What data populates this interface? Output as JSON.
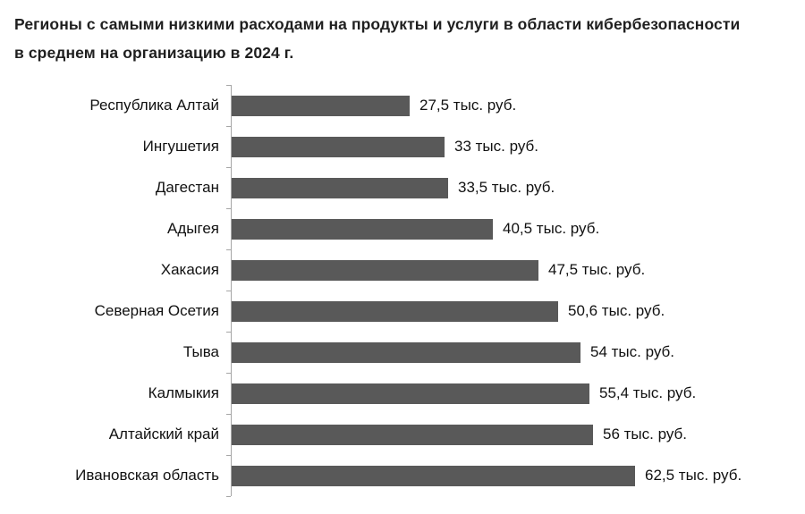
{
  "title": {
    "line1": "Регионы с самыми низкими расходами на продукты и услуги в области кибербезопасности",
    "line2": "в среднем на организацию в 2024 г."
  },
  "chart_data": {
    "type": "bar",
    "orientation": "horizontal",
    "title": "Регионы с самыми низкими расходами на продукты и услуги в области кибербезопасности в среднем на организацию в 2024 г.",
    "unit": "тыс. руб.",
    "categories": [
      "Республика Алтай",
      "Ингушетия",
      "Дагестан",
      "Адыгея",
      "Хакасия",
      "Северная Осетия",
      "Тыва",
      "Калмыкия",
      "Алтайский край",
      "Ивановская область"
    ],
    "values": [
      27.5,
      33,
      33.5,
      40.5,
      47.5,
      50.6,
      54,
      55.4,
      56,
      62.5
    ],
    "value_labels": [
      "27,5 тыс. руб.",
      "33 тыс. руб.",
      "33,5 тыс. руб.",
      "40,5 тыс. руб.",
      "47,5 тыс. руб.",
      "50,6 тыс. руб.",
      "54 тыс. руб.",
      "55,4 тыс. руб.",
      "56 тыс. руб.",
      "62,5 тыс. руб."
    ],
    "bar_color": "#595959",
    "axis_color": "#a6a6a6",
    "grid": false,
    "legend": false
  }
}
